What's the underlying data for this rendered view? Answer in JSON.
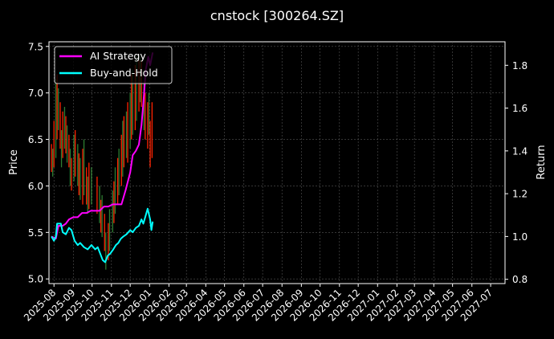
{
  "chart_data": {
    "type": "line",
    "title": "cnstock [300264.SZ]",
    "ylabel_left": "Price",
    "ylabel_right": "Return",
    "xlabel": "",
    "grid": true,
    "legend_placement": "top-left",
    "x_range": [
      "2025-07-24",
      "2027-07-24"
    ],
    "ylim_left": [
      4.95,
      7.55
    ],
    "ylim_right": [
      0.78,
      1.91
    ],
    "yticks_left": [
      5.0,
      5.5,
      6.0,
      6.5,
      7.0,
      7.5
    ],
    "yticks_right": [
      0.8,
      1.0,
      1.2,
      1.4,
      1.6,
      1.8
    ],
    "yticks_left_labels": [
      "5.0",
      "5.5",
      "6.0",
      "6.5",
      "7.0",
      "7.5"
    ],
    "yticks_right_labels": [
      "0.8",
      "1.0",
      "1.2",
      "1.4",
      "1.6",
      "1.8"
    ],
    "x_ticks": [
      {
        "date": "2025-08-01",
        "label": "2025-08"
      },
      {
        "date": "2025-09-01",
        "label": "2025-09"
      },
      {
        "date": "2025-10-01",
        "label": "2025-10"
      },
      {
        "date": "2025-11-01",
        "label": "2025-11"
      },
      {
        "date": "2025-12-01",
        "label": "2025-12"
      },
      {
        "date": "2026-01-01",
        "label": "2026-01"
      },
      {
        "date": "2026-02-01",
        "label": "2026-02"
      },
      {
        "date": "2026-03-01",
        "label": "2026-03"
      },
      {
        "date": "2026-04-01",
        "label": "2026-04"
      },
      {
        "date": "2026-05-01",
        "label": "2026-05"
      },
      {
        "date": "2026-06-01",
        "label": "2026-06"
      },
      {
        "date": "2026-07-01",
        "label": "2026-07"
      },
      {
        "date": "2026-08-01",
        "label": "2026-08"
      },
      {
        "date": "2026-09-01",
        "label": "2026-09"
      },
      {
        "date": "2026-10-01",
        "label": "2026-10"
      },
      {
        "date": "2026-11-01",
        "label": "2026-11"
      },
      {
        "date": "2026-12-01",
        "label": "2026-12"
      },
      {
        "date": "2027-01-01",
        "label": "2027-01"
      },
      {
        "date": "2027-02-01",
        "label": "2027-02"
      },
      {
        "date": "2027-03-01",
        "label": "2027-03"
      },
      {
        "date": "2027-04-01",
        "label": "2027-04"
      },
      {
        "date": "2027-05-01",
        "label": "2027-05"
      },
      {
        "date": "2027-06-01",
        "label": "2027-06"
      },
      {
        "date": "2027-07-01",
        "label": "2027-07"
      }
    ],
    "series": [
      {
        "name": "AI Strategy",
        "axis": "right",
        "color": "#ff00ff",
        "points": [
          [
            "2025-07-28",
            1.0
          ],
          [
            "2025-08-04",
            0.99
          ],
          [
            "2025-08-08",
            1.05
          ],
          [
            "2025-08-15",
            1.05
          ],
          [
            "2025-08-20",
            1.06
          ],
          [
            "2025-08-25",
            1.08
          ],
          [
            "2025-09-01",
            1.09
          ],
          [
            "2025-09-08",
            1.09
          ],
          [
            "2025-09-15",
            1.11
          ],
          [
            "2025-09-22",
            1.11
          ],
          [
            "2025-09-29",
            1.12
          ],
          [
            "2025-10-06",
            1.12
          ],
          [
            "2025-10-13",
            1.12
          ],
          [
            "2025-10-20",
            1.14
          ],
          [
            "2025-10-27",
            1.14
          ],
          [
            "2025-11-03",
            1.15
          ],
          [
            "2025-11-10",
            1.15
          ],
          [
            "2025-11-17",
            1.15
          ],
          [
            "2025-11-24",
            1.22
          ],
          [
            "2025-12-01",
            1.3
          ],
          [
            "2025-12-05",
            1.38
          ],
          [
            "2025-12-10",
            1.4
          ],
          [
            "2025-12-15",
            1.43
          ],
          [
            "2025-12-19",
            1.52
          ],
          [
            "2025-12-22",
            1.62
          ],
          [
            "2025-12-26",
            1.78
          ],
          [
            "2025-12-30",
            1.84
          ],
          [
            "2026-01-02",
            1.8
          ],
          [
            "2026-01-06",
            1.86
          ]
        ]
      },
      {
        "name": "Buy-and-Hold",
        "axis": "right",
        "color": "#00ffff",
        "points": [
          [
            "2025-07-28",
            1.0
          ],
          [
            "2025-08-01",
            0.98
          ],
          [
            "2025-08-04",
            1.0
          ],
          [
            "2025-08-06",
            1.06
          ],
          [
            "2025-08-12",
            1.06
          ],
          [
            "2025-08-15",
            1.02
          ],
          [
            "2025-08-20",
            1.01
          ],
          [
            "2025-08-25",
            1.04
          ],
          [
            "2025-08-29",
            1.03
          ],
          [
            "2025-09-03",
            0.98
          ],
          [
            "2025-09-08",
            0.96
          ],
          [
            "2025-09-12",
            0.97
          ],
          [
            "2025-09-18",
            0.95
          ],
          [
            "2025-09-24",
            0.94
          ],
          [
            "2025-09-30",
            0.96
          ],
          [
            "2025-10-06",
            0.94
          ],
          [
            "2025-10-10",
            0.95
          ],
          [
            "2025-10-14",
            0.92
          ],
          [
            "2025-10-18",
            0.89
          ],
          [
            "2025-10-22",
            0.88
          ],
          [
            "2025-10-26",
            0.91
          ],
          [
            "2025-10-30",
            0.92
          ],
          [
            "2025-11-04",
            0.94
          ],
          [
            "2025-11-08",
            0.96
          ],
          [
            "2025-11-12",
            0.97
          ],
          [
            "2025-11-16",
            0.99
          ],
          [
            "2025-11-20",
            1.0
          ],
          [
            "2025-11-25",
            1.01
          ],
          [
            "2025-12-01",
            1.03
          ],
          [
            "2025-12-05",
            1.02
          ],
          [
            "2025-12-10",
            1.04
          ],
          [
            "2025-12-15",
            1.05
          ],
          [
            "2025-12-19",
            1.08
          ],
          [
            "2025-12-22",
            1.06
          ],
          [
            "2025-12-26",
            1.1
          ],
          [
            "2025-12-29",
            1.13
          ],
          [
            "2026-01-02",
            1.08
          ],
          [
            "2026-01-04",
            1.03
          ],
          [
            "2026-01-06",
            1.07
          ]
        ]
      }
    ],
    "price_wicks": {
      "axis": "left",
      "up_color": "#2e7d32",
      "down_color": "#ff2200",
      "bars": [
        [
          "2025-07-28",
          6.15,
          6.45,
          "down"
        ],
        [
          "2025-07-30",
          6.1,
          6.4,
          "up"
        ],
        [
          "2025-08-01",
          6.2,
          6.7,
          "down"
        ],
        [
          "2025-08-04",
          6.3,
          7.15,
          "up"
        ],
        [
          "2025-08-06",
          6.5,
          7.2,
          "down"
        ],
        [
          "2025-08-08",
          6.6,
          7.05,
          "up"
        ],
        [
          "2025-08-11",
          6.4,
          6.9,
          "down"
        ],
        [
          "2025-08-13",
          6.2,
          6.6,
          "up"
        ],
        [
          "2025-08-15",
          6.3,
          6.8,
          "down"
        ],
        [
          "2025-08-18",
          6.4,
          6.85,
          "up"
        ],
        [
          "2025-08-20",
          6.35,
          6.75,
          "down"
        ],
        [
          "2025-08-22",
          6.25,
          6.65,
          "up"
        ],
        [
          "2025-08-25",
          6.2,
          6.55,
          "down"
        ],
        [
          "2025-08-27",
          6.0,
          6.4,
          "up"
        ],
        [
          "2025-08-29",
          5.95,
          6.3,
          "down"
        ],
        [
          "2025-09-02",
          6.05,
          6.55,
          "up"
        ],
        [
          "2025-09-04",
          6.1,
          6.6,
          "down"
        ],
        [
          "2025-09-08",
          6.0,
          6.45,
          "up"
        ],
        [
          "2025-09-10",
          5.9,
          6.35,
          "down"
        ],
        [
          "2025-09-12",
          5.85,
          6.3,
          "up"
        ],
        [
          "2025-09-16",
          5.8,
          6.4,
          "down"
        ],
        [
          "2025-09-18",
          5.9,
          6.5,
          "up"
        ],
        [
          "2025-09-22",
          5.8,
          6.2,
          "down"
        ],
        [
          "2025-09-24",
          5.7,
          6.1,
          "up"
        ],
        [
          "2025-09-26",
          5.75,
          6.25,
          "down"
        ],
        [
          "2025-09-30",
          5.8,
          6.2,
          "up"
        ],
        [
          "2025-10-09",
          5.7,
          6.1,
          "down"
        ],
        [
          "2025-10-13",
          5.6,
          6.0,
          "up"
        ],
        [
          "2025-10-15",
          5.5,
          5.85,
          "down"
        ],
        [
          "2025-10-17",
          5.45,
          5.9,
          "up"
        ],
        [
          "2025-10-21",
          5.3,
          5.7,
          "down"
        ],
        [
          "2025-10-23",
          5.1,
          5.5,
          "up"
        ],
        [
          "2025-10-27",
          5.2,
          5.6,
          "down"
        ],
        [
          "2025-10-29",
          5.3,
          5.75,
          "up"
        ],
        [
          "2025-11-03",
          5.5,
          5.95,
          "up"
        ],
        [
          "2025-11-05",
          5.6,
          6.05,
          "down"
        ],
        [
          "2025-11-07",
          5.7,
          6.2,
          "up"
        ],
        [
          "2025-11-11",
          5.8,
          6.3,
          "down"
        ],
        [
          "2025-11-13",
          5.9,
          6.4,
          "up"
        ],
        [
          "2025-11-17",
          6.0,
          6.55,
          "down"
        ],
        [
          "2025-11-19",
          6.1,
          6.7,
          "up"
        ],
        [
          "2025-11-21",
          6.2,
          6.75,
          "down"
        ],
        [
          "2025-11-25",
          6.3,
          6.8,
          "up"
        ],
        [
          "2025-11-27",
          6.25,
          6.9,
          "down"
        ],
        [
          "2025-12-01",
          6.4,
          7.0,
          "up"
        ],
        [
          "2025-12-03",
          6.5,
          7.2,
          "down"
        ],
        [
          "2025-12-05",
          6.55,
          7.25,
          "up"
        ],
        [
          "2025-12-09",
          6.6,
          7.3,
          "down"
        ],
        [
          "2025-12-11",
          6.7,
          7.4,
          "up"
        ],
        [
          "2025-12-15",
          6.8,
          7.35,
          "down"
        ],
        [
          "2025-12-17",
          6.9,
          7.4,
          "up"
        ],
        [
          "2025-12-19",
          6.85,
          7.35,
          "down"
        ],
        [
          "2025-12-23",
          6.6,
          7.1,
          "up"
        ],
        [
          "2025-12-25",
          6.5,
          7.0,
          "down"
        ],
        [
          "2025-12-29",
          6.4,
          6.9,
          "down"
        ],
        [
          "2025-12-31",
          6.55,
          7.0,
          "up"
        ],
        [
          "2026-01-02",
          6.2,
          6.7,
          "down"
        ],
        [
          "2026-01-05",
          6.3,
          6.9,
          "down"
        ]
      ]
    }
  }
}
